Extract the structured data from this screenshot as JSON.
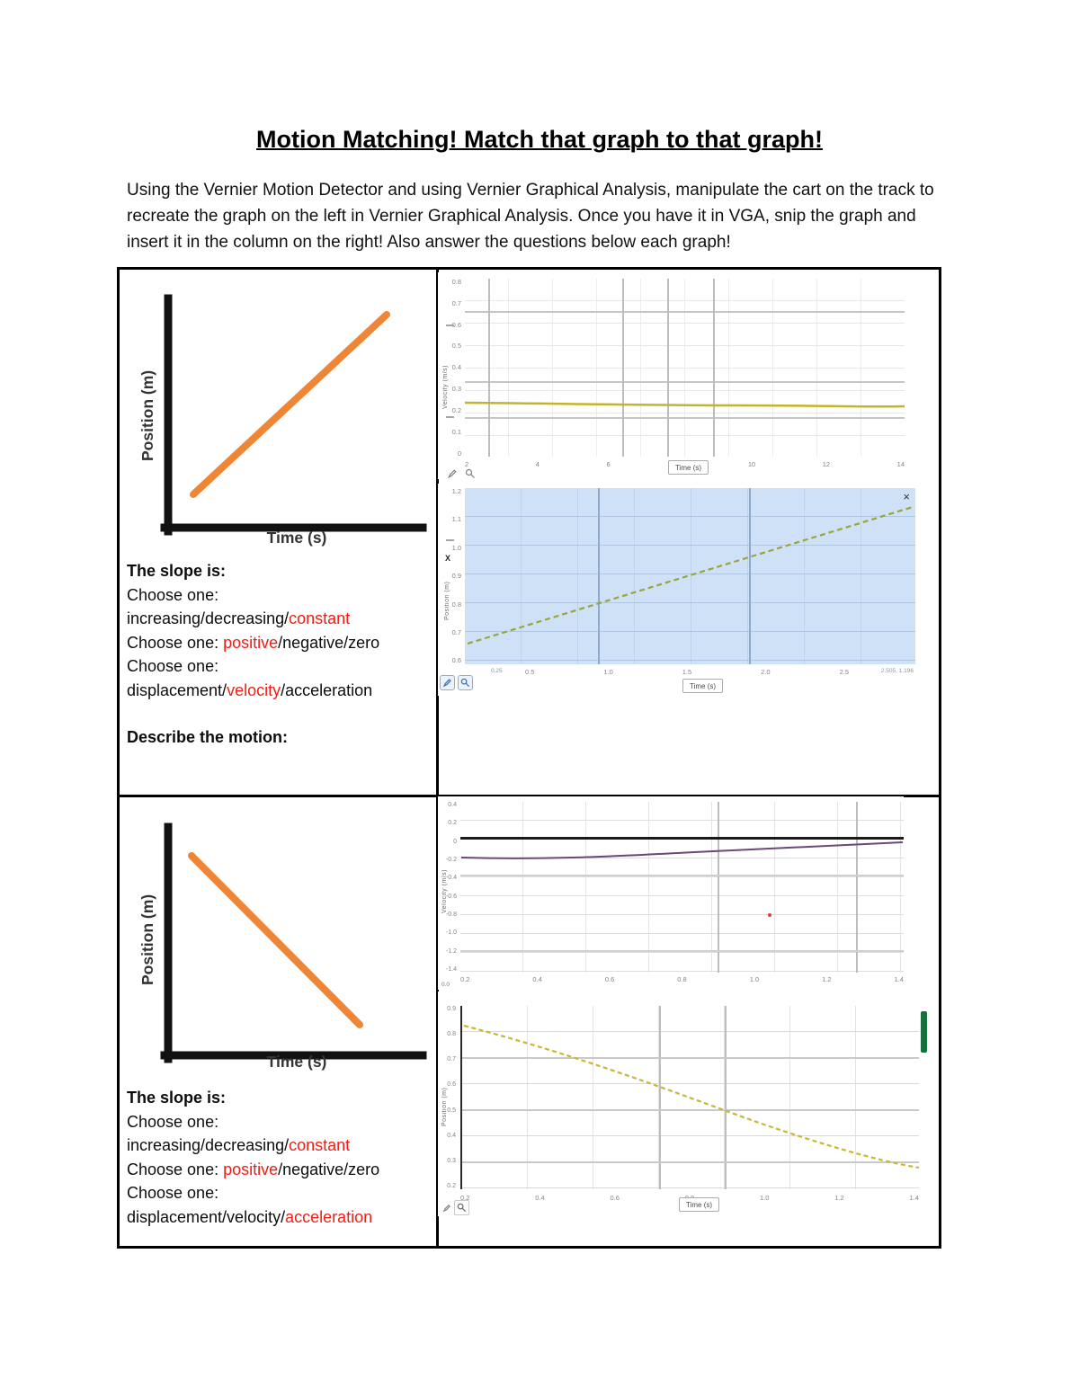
{
  "page": {
    "title": "Motion Matching! Match that graph to that graph!",
    "intro": "Using the Vernier Motion Detector and using Vernier Graphical Analysis, manipulate the cart on the track to recreate the graph on the left in Vernier Graphical Analysis.  Once you have it in VGA, snip the graph and insert it in the column on the right!  Also answer the questions below each graph!"
  },
  "sketch": {
    "ylabel": "Position (m)",
    "xlabel": "Time (s)"
  },
  "questions": {
    "heading": "The slope is:",
    "choose": "Choose one:",
    "describe": "Describe the motion:"
  },
  "row1": {
    "line3": {
      "pre": "increasing/decreasing/",
      "red": "constant",
      "post": ""
    },
    "line4": {
      "pre": "Choose one: ",
      "red": "positive",
      "post": "/negative/zero"
    },
    "line6": {
      "pre": "displacement/",
      "red": "velocity",
      "post": "/acceleration"
    }
  },
  "row2": {
    "line3": {
      "pre": "increasing/decreasing/",
      "red": "constant",
      "post": ""
    },
    "line4": {
      "pre": "Choose one: ",
      "red": "positive",
      "post": "/negative/zero"
    },
    "line6": {
      "pre": "displacement/velocity/",
      "red": "acceleration",
      "post": ""
    }
  },
  "vga": {
    "g1": {
      "ylabel": "Velocity (m/s)",
      "xlabel": "Time (s)",
      "yticks": [
        "0.8",
        "0.7",
        "0.6",
        "0.5",
        "0.4",
        "0.3",
        "0.2",
        "0.1",
        "0"
      ],
      "xticks": [
        "2",
        "4",
        "6",
        "8",
        "10",
        "12",
        "14"
      ]
    },
    "g2": {
      "ylabel": "Position (m)",
      "xlabel": "Time (s)",
      "y_button": "X",
      "close": "×",
      "corner_left": "0.25",
      "corner_right": "2.505, 1.196",
      "yticks": [
        "1.2",
        "1.1",
        "1.0",
        "0.9",
        "0.8",
        "0.7",
        "0.6"
      ],
      "xticks": [
        "0.5",
        "1.0",
        "1.5",
        "2.0",
        "2.5"
      ]
    },
    "g3": {
      "ylabel": "Velocity (m/s)",
      "corner": "0.0",
      "yticks": [
        "0.4",
        "0.2",
        "0",
        "-0.2",
        "-0.4",
        "-0.6",
        "-0.8",
        "-1.0",
        "-1.2",
        "-1.4"
      ],
      "xticks": [
        "0.2",
        "0.4",
        "0.6",
        "0.8",
        "1.0",
        "1.2",
        "1.4"
      ]
    },
    "g4": {
      "ylabel": "Position (m)",
      "xlabel": "Time (s)",
      "yticks": [
        "0.9",
        "0.8",
        "0.7",
        "0.6",
        "0.5",
        "0.4",
        "0.3",
        "0.2"
      ],
      "xticks": [
        "0.2",
        "0.4",
        "0.6",
        "0.8",
        "1.0",
        "1.2",
        "1.4"
      ]
    }
  },
  "colors": {
    "sketch_line_orange": "#ee8636",
    "answer_red": "#f01e14",
    "vga_yellow_line": "#c4b42c",
    "vga_green_dash": "#9aa43a",
    "vga_purple_line": "#6b4878",
    "vga_zero_line_black": "#1a1a1a",
    "selection_blue_bg": "#cfe1f6",
    "scrollbar_green": "#17713c",
    "red_dot": "#e03c34"
  },
  "chart_data": [
    {
      "type": "line",
      "title": "sketch-row1",
      "xlabel": "Time (s)",
      "ylabel": "Position (m)",
      "series": [
        {
          "name": "position",
          "trend": "straight line, constant positive slope",
          "x": [
            0,
            2
          ],
          "y": [
            0.2,
            1.2
          ]
        }
      ]
    },
    {
      "type": "line",
      "title": "vga-row1-velocity",
      "xlabel": "Time (s)",
      "ylabel": "Velocity (m/s)",
      "ylim": [
        0,
        0.8
      ],
      "series": [
        {
          "name": "velocity",
          "trend": "flat",
          "x": [
            0,
            14
          ],
          "y": [
            0.26,
            0.24
          ]
        }
      ]
    },
    {
      "type": "line",
      "title": "vga-row1-position (selected)",
      "xlabel": "Time (s)",
      "ylabel": "Position (m)",
      "ylim": [
        0.5,
        1.3
      ],
      "series": [
        {
          "name": "position",
          "trend": "linear increasing (dashed)",
          "x": [
            0,
            2.5
          ],
          "y": [
            0.62,
            1.19
          ]
        }
      ]
    },
    {
      "type": "line",
      "title": "sketch-row2",
      "xlabel": "Time (s)",
      "ylabel": "Position (m)",
      "series": [
        {
          "name": "position",
          "trend": "straight line, constant negative slope",
          "x": [
            0,
            2
          ],
          "y": [
            1.2,
            0.2
          ]
        }
      ]
    },
    {
      "type": "line",
      "title": "vga-row2-velocity",
      "xlabel": "Time (s)",
      "ylabel": "Velocity (m/s)",
      "ylim": [
        -1.4,
        0.4
      ],
      "series": [
        {
          "name": "velocity",
          "trend": "slightly rising, just below zero line",
          "x": [
            0,
            1.4
          ],
          "y": [
            -0.12,
            -0.05
          ]
        }
      ]
    },
    {
      "type": "line",
      "title": "vga-row2-position",
      "xlabel": "Time (s)",
      "ylabel": "Position (m)",
      "ylim": [
        0.2,
        0.9
      ],
      "series": [
        {
          "name": "position",
          "trend": "decreasing curve (dashed)",
          "x": [
            0,
            1.4
          ],
          "y": [
            0.87,
            0.32
          ]
        }
      ]
    }
  ]
}
